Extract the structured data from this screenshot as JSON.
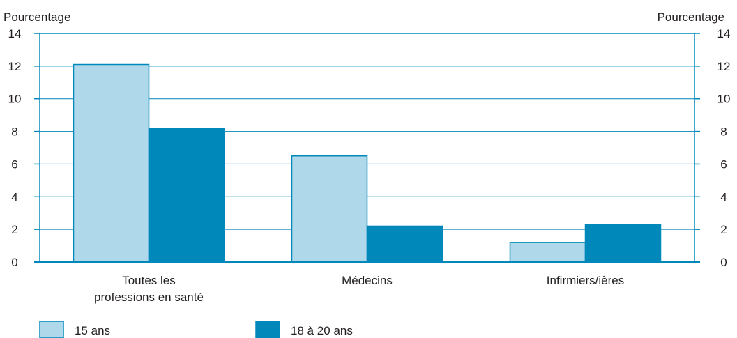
{
  "chart_data": {
    "type": "bar",
    "ylabel_left": "Pourcentage",
    "ylabel_right": "Pourcentage",
    "ylim": [
      0,
      14
    ],
    "yticks": [
      0,
      2,
      4,
      6,
      8,
      10,
      12,
      14
    ],
    "grid": true,
    "legend_position": "bottom",
    "categories": [
      [
        "Toutes les",
        "professions en santé"
      ],
      [
        "Médecins"
      ],
      [
        "Infirmiers/ières"
      ]
    ],
    "series": [
      {
        "name": "15 ans",
        "values": [
          12.1,
          6.5,
          1.2
        ],
        "color": "#b0d8eb"
      },
      {
        "name": "18 à 20 ans",
        "values": [
          8.2,
          2.2,
          2.3
        ],
        "color": "#0088bb"
      }
    ],
    "colors": {
      "axis": "#0088bb",
      "grid": "#0088bb",
      "bar_outline": "#0088bb"
    }
  }
}
